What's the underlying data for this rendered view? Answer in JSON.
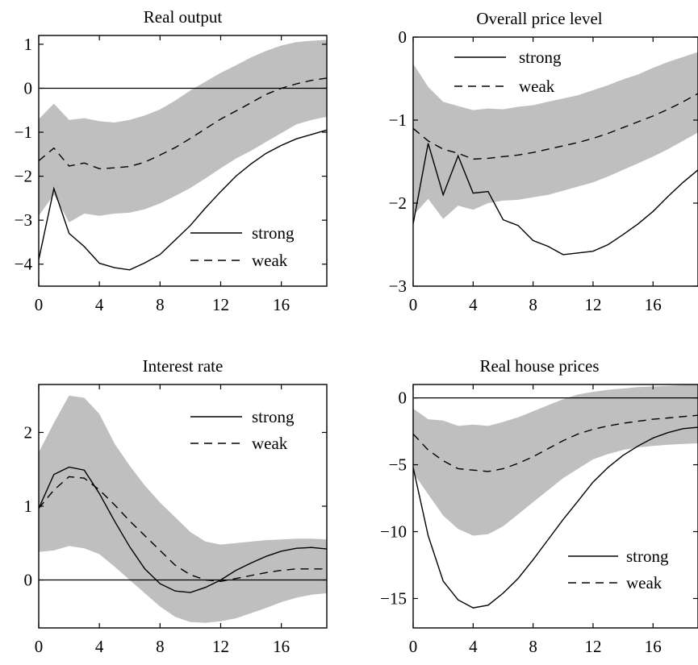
{
  "chart_data": [
    {
      "type": "line",
      "title": "Real output",
      "xlabel": "",
      "ylabel": "",
      "xlim": [
        0,
        19
      ],
      "ylim": [
        -4.5,
        1.2
      ],
      "xticks": [
        0,
        4,
        8,
        12,
        16
      ],
      "yticks": [
        1,
        0,
        -1,
        -2,
        -3,
        -4
      ],
      "ytick_labels": [
        "1",
        "0",
        "−1",
        "−2",
        "−3",
        "−4"
      ],
      "zero_line": true,
      "legend_position": "bottom-right",
      "x": [
        0,
        1,
        2,
        3,
        4,
        5,
        6,
        7,
        8,
        9,
        10,
        11,
        12,
        13,
        14,
        15,
        16,
        17,
        18,
        19
      ],
      "band": {
        "upper": [
          -0.7,
          -0.35,
          -0.72,
          -0.68,
          -0.75,
          -0.78,
          -0.72,
          -0.62,
          -0.48,
          -0.28,
          -0.05,
          0.15,
          0.35,
          0.52,
          0.7,
          0.85,
          0.97,
          1.05,
          1.08,
          1.1
        ],
        "lower": [
          -2.9,
          -2.42,
          -3.05,
          -2.85,
          -2.9,
          -2.85,
          -2.83,
          -2.75,
          -2.62,
          -2.45,
          -2.27,
          -2.05,
          -1.82,
          -1.6,
          -1.42,
          -1.22,
          -1.02,
          -0.82,
          -0.72,
          -0.65
        ]
      },
      "series": [
        {
          "name": "strong",
          "style": "solid",
          "values": [
            -3.9,
            -2.28,
            -3.3,
            -3.6,
            -3.98,
            -4.08,
            -4.13,
            -3.97,
            -3.78,
            -3.45,
            -3.12,
            -2.72,
            -2.35,
            -2.0,
            -1.72,
            -1.48,
            -1.3,
            -1.15,
            -1.05,
            -0.95
          ]
        },
        {
          "name": "weak",
          "style": "dashed",
          "values": [
            -1.65,
            -1.36,
            -1.77,
            -1.7,
            -1.83,
            -1.81,
            -1.78,
            -1.68,
            -1.52,
            -1.35,
            -1.14,
            -0.92,
            -0.7,
            -0.52,
            -0.33,
            -0.14,
            0.0,
            0.1,
            0.18,
            0.23
          ]
        }
      ]
    },
    {
      "type": "line",
      "title": "Overall price level",
      "xlabel": "",
      "ylabel": "",
      "xlim": [
        0,
        19
      ],
      "ylim": [
        -3,
        0
      ],
      "xticks": [
        0,
        4,
        8,
        12,
        16
      ],
      "yticks": [
        0,
        -1,
        -2,
        -3
      ],
      "ytick_labels": [
        "0",
        "−1",
        "−2",
        "−3"
      ],
      "zero_line": false,
      "legend_position": "top-left",
      "x": [
        0,
        1,
        2,
        3,
        4,
        5,
        6,
        7,
        8,
        9,
        10,
        11,
        12,
        13,
        14,
        15,
        16,
        17,
        18,
        19
      ],
      "band": {
        "upper": [
          -0.32,
          -0.6,
          -0.78,
          -0.83,
          -0.88,
          -0.86,
          -0.87,
          -0.84,
          -0.82,
          -0.78,
          -0.74,
          -0.7,
          -0.64,
          -0.58,
          -0.51,
          -0.45,
          -0.37,
          -0.3,
          -0.24,
          -0.18
        ],
        "lower": [
          -2.15,
          -1.95,
          -2.19,
          -2.03,
          -2.08,
          -2.0,
          -1.97,
          -1.96,
          -1.93,
          -1.9,
          -1.85,
          -1.8,
          -1.75,
          -1.68,
          -1.6,
          -1.52,
          -1.44,
          -1.35,
          -1.25,
          -1.15
        ]
      },
      "series": [
        {
          "name": "strong",
          "style": "solid",
          "values": [
            -2.25,
            -1.28,
            -1.9,
            -1.43,
            -1.88,
            -1.86,
            -2.2,
            -2.27,
            -2.45,
            -2.52,
            -2.62,
            -2.6,
            -2.58,
            -2.5,
            -2.38,
            -2.25,
            -2.1,
            -1.92,
            -1.75,
            -1.6
          ]
        },
        {
          "name": "weak",
          "style": "dashed",
          "values": [
            -1.1,
            -1.25,
            -1.35,
            -1.4,
            -1.47,
            -1.46,
            -1.44,
            -1.42,
            -1.39,
            -1.35,
            -1.31,
            -1.27,
            -1.22,
            -1.16,
            -1.09,
            -1.02,
            -0.95,
            -0.87,
            -0.78,
            -0.68
          ]
        }
      ]
    },
    {
      "type": "line",
      "title": "Interest rate",
      "xlabel": "",
      "ylabel": "",
      "xlim": [
        0,
        19
      ],
      "ylim": [
        -0.65,
        2.65
      ],
      "xticks": [
        0,
        4,
        8,
        12,
        16
      ],
      "yticks": [
        2,
        1,
        0
      ],
      "ytick_labels": [
        "2",
        "1",
        "0"
      ],
      "zero_line": true,
      "legend_position": "top-right",
      "x": [
        0,
        1,
        2,
        3,
        4,
        5,
        6,
        7,
        8,
        9,
        10,
        11,
        12,
        13,
        14,
        15,
        16,
        17,
        18,
        19
      ],
      "band": {
        "upper": [
          1.73,
          2.13,
          2.5,
          2.47,
          2.25,
          1.85,
          1.55,
          1.28,
          1.05,
          0.85,
          0.65,
          0.52,
          0.48,
          0.5,
          0.52,
          0.54,
          0.55,
          0.56,
          0.56,
          0.55
        ],
        "lower": [
          0.38,
          0.4,
          0.46,
          0.43,
          0.35,
          0.18,
          0.0,
          -0.18,
          -0.36,
          -0.5,
          -0.57,
          -0.58,
          -0.56,
          -0.52,
          -0.45,
          -0.38,
          -0.3,
          -0.24,
          -0.2,
          -0.18
        ]
      },
      "series": [
        {
          "name": "strong",
          "style": "solid",
          "values": [
            0.97,
            1.43,
            1.53,
            1.49,
            1.17,
            0.8,
            0.45,
            0.15,
            -0.05,
            -0.15,
            -0.17,
            -0.1,
            0.0,
            0.13,
            0.23,
            0.32,
            0.39,
            0.43,
            0.44,
            0.42
          ]
        },
        {
          "name": "weak",
          "style": "dashed",
          "values": [
            0.97,
            1.22,
            1.4,
            1.38,
            1.22,
            1.02,
            0.8,
            0.6,
            0.4,
            0.2,
            0.07,
            0.0,
            -0.02,
            0.02,
            0.06,
            0.1,
            0.13,
            0.15,
            0.15,
            0.15
          ]
        }
      ]
    },
    {
      "type": "line",
      "title": "Real house prices",
      "xlabel": "",
      "ylabel": "",
      "xlim": [
        0,
        19
      ],
      "ylim": [
        -17.2,
        1
      ],
      "xticks": [
        0,
        4,
        8,
        12,
        16
      ],
      "yticks": [
        0,
        -5,
        -10,
        -15
      ],
      "ytick_labels": [
        "0",
        "−5",
        "−10",
        "−15"
      ],
      "zero_line": true,
      "legend_position": "bottom-right",
      "x": [
        0,
        1,
        2,
        3,
        4,
        5,
        6,
        7,
        8,
        9,
        10,
        11,
        12,
        13,
        14,
        15,
        16,
        17,
        18,
        19
      ],
      "band": {
        "upper": [
          -0.8,
          -1.6,
          -1.7,
          -2.1,
          -2.0,
          -2.1,
          -1.8,
          -1.45,
          -1.0,
          -0.55,
          -0.1,
          0.25,
          0.45,
          0.6,
          0.7,
          0.8,
          0.85,
          0.9,
          0.95,
          1.0
        ],
        "lower": [
          -5.6,
          -7.2,
          -8.8,
          -9.8,
          -10.3,
          -10.2,
          -9.6,
          -8.7,
          -7.8,
          -6.9,
          -6.0,
          -5.3,
          -4.6,
          -4.2,
          -3.9,
          -3.7,
          -3.6,
          -3.5,
          -3.45,
          -3.4
        ]
      },
      "series": [
        {
          "name": "strong",
          "style": "solid",
          "values": [
            -5.2,
            -10.3,
            -13.7,
            -15.1,
            -15.7,
            -15.5,
            -14.6,
            -13.5,
            -12.1,
            -10.6,
            -9.1,
            -7.7,
            -6.3,
            -5.2,
            -4.3,
            -3.6,
            -3.0,
            -2.6,
            -2.3,
            -2.2
          ]
        },
        {
          "name": "weak",
          "style": "dashed",
          "values": [
            -2.7,
            -3.9,
            -4.7,
            -5.3,
            -5.4,
            -5.5,
            -5.3,
            -4.9,
            -4.4,
            -3.8,
            -3.2,
            -2.7,
            -2.35,
            -2.1,
            -1.9,
            -1.75,
            -1.6,
            -1.5,
            -1.4,
            -1.3
          ]
        }
      ]
    }
  ]
}
